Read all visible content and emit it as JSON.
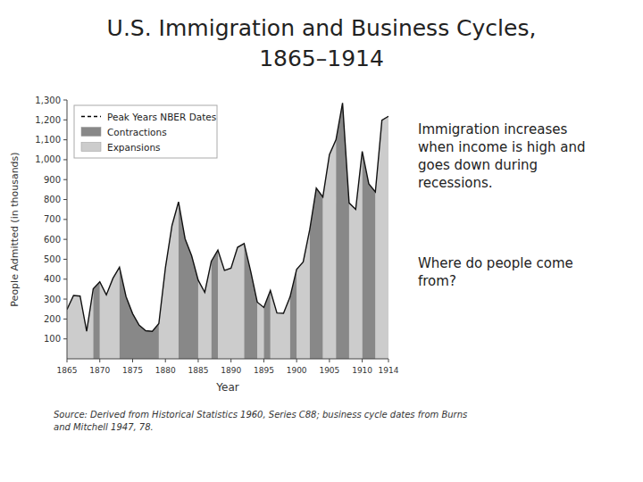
{
  "chart_data": {
    "type": "area",
    "title": "U.S. Immigration and Business Cycles,",
    "subtitle": "1865–1914",
    "y_label": "People Admitted (in thousands)",
    "x_label": "Year",
    "annotations": [
      "Immigration increases\nwhen income is high and\ngoes down during\nrecessions.",
      "Where do people come\nfrom?"
    ],
    "source": "Source: Derived from Historical Statistics 1960, Series C88; business cycle dates from Burns\nand Mitchell 1947, 78.",
    "x": [
      1865,
      1866,
      1867,
      1868,
      1869,
      1870,
      1871,
      1872,
      1873,
      1874,
      1875,
      1876,
      1877,
      1878,
      1879,
      1880,
      1881,
      1882,
      1883,
      1884,
      1885,
      1886,
      1887,
      1888,
      1889,
      1890,
      1891,
      1892,
      1893,
      1894,
      1895,
      1896,
      1897,
      1898,
      1899,
      1900,
      1901,
      1902,
      1903,
      1904,
      1905,
      1906,
      1907,
      1908,
      1909,
      1910,
      1911,
      1912,
      1913,
      1914
    ],
    "series": [
      {
        "type": "line",
        "color": "#111111",
        "values": [
          248,
          318,
          315,
          138,
          352,
          387,
          321,
          404,
          460,
          313,
          227,
          169,
          141,
          138,
          177,
          457,
          669,
          788,
          603,
          518,
          395,
          334,
          490,
          546,
          444,
          455,
          560,
          579,
          440,
          285,
          258,
          343,
          230,
          229,
          311,
          449,
          487,
          649,
          857,
          813,
          1026,
          1100,
          1285,
          783,
          751,
          1042,
          879,
          838,
          1198,
          1218
        ]
      }
    ],
    "peak_marker": {
      "name": "Peak Years NBER Dates",
      "color": "black",
      "line_style": "dashed"
    },
    "periods": [
      {
        "name": "Contractions",
        "color": "#888888",
        "ranges": [
          [
            1869,
            1870
          ],
          [
            1873,
            1879
          ],
          [
            1882,
            1885
          ],
          [
            1887,
            1888
          ],
          [
            1892,
            1894
          ],
          [
            1895,
            1896
          ],
          [
            1899,
            1900
          ],
          [
            1902,
            1904
          ],
          [
            1906,
            1908
          ],
          [
            1910,
            1912
          ]
        ]
      },
      {
        "name": "Expansions",
        "color": "#cccccc",
        "ranges": [
          [
            1865,
            1869
          ],
          [
            1870,
            1873
          ],
          [
            1879,
            1882
          ],
          [
            1885,
            1887
          ],
          [
            1888,
            1892
          ],
          [
            1894,
            1895
          ],
          [
            1896,
            1899
          ],
          [
            1900,
            1902
          ],
          [
            1904,
            1906
          ],
          [
            1908,
            1910
          ],
          [
            1912,
            1914
          ]
        ]
      }
    ],
    "legend": "upper left",
    "grid": false,
    "xlim": [
      1865,
      1914
    ],
    "xticks": [
      1865,
      1870,
      1875,
      1880,
      1885,
      1890,
      1895,
      1900,
      1905,
      1910,
      1914
    ],
    "ylim": [
      0,
      1300
    ],
    "yticks": [
      100,
      200,
      300,
      400,
      500,
      600,
      700,
      800,
      900,
      {
        "value": 1000,
        "label": "1,000"
      },
      {
        "value": 1100,
        "label": "1,100"
      },
      {
        "value": 1200,
        "label": "1,200"
      },
      {
        "value": 1300,
        "label": "1,300"
      }
    ]
  }
}
